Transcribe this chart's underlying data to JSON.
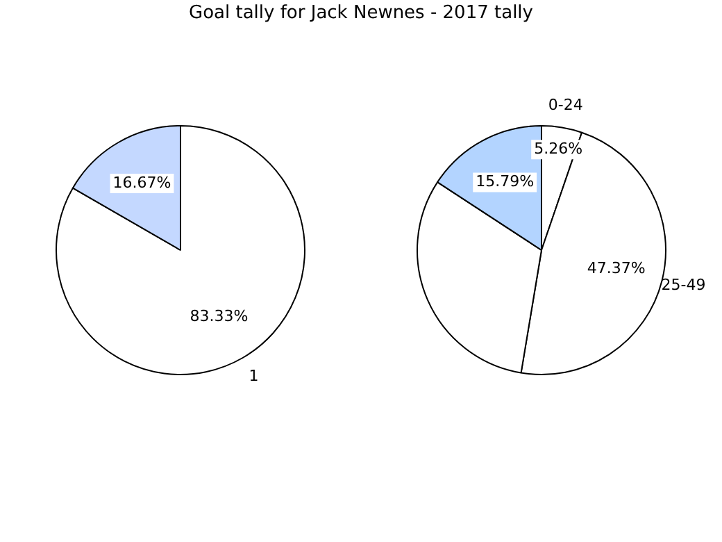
{
  "chart_data": [
    {
      "type": "pie",
      "title": "Goal tally for Jack Newnes - 2017 tally",
      "categories": [
        "1",
        null
      ],
      "values": [
        83.33,
        16.67
      ],
      "colors": [
        "#ffffff",
        "#c4d8ff"
      ],
      "value_labels": [
        "83.33%",
        "16.67%"
      ],
      "legend": false
    },
    {
      "type": "pie",
      "categories": [
        "0-24",
        "25-49",
        null,
        null
      ],
      "values": [
        5.26,
        47.37,
        31.58,
        15.79
      ],
      "colors": [
        "#ffffff",
        "#ffffff",
        "#ffffff",
        "#b3d4ff"
      ],
      "value_labels": [
        "5.26%",
        "47.37%",
        null,
        "15.79%"
      ],
      "legend": false
    }
  ]
}
